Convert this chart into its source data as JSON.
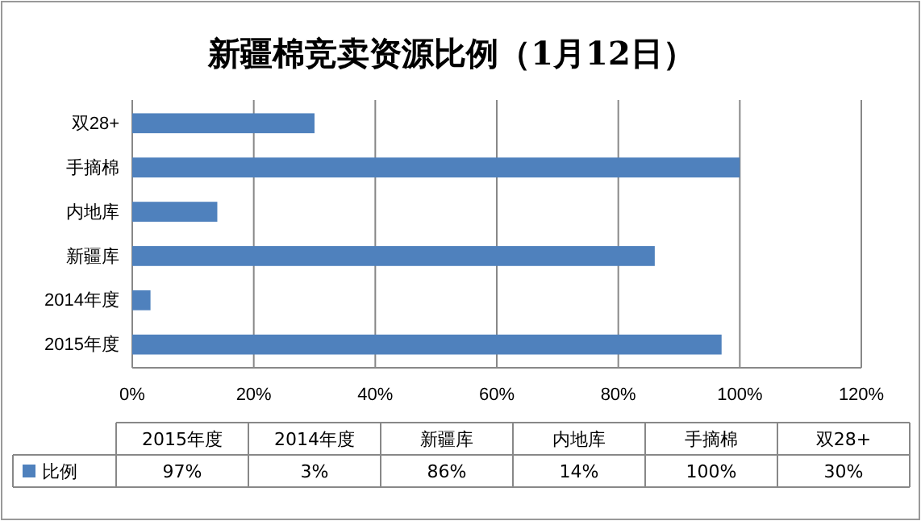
{
  "chart_data": {
    "type": "bar",
    "orientation": "horizontal",
    "title": "新疆棉竞卖资源比例（1月12日）",
    "categories": [
      "双28+",
      "手摘棉",
      "内地库",
      "新疆库",
      "2014年度",
      "2015年度"
    ],
    "series": [
      {
        "name": "比例",
        "color": "#4f81bd",
        "values": [
          30,
          100,
          14,
          86,
          3,
          97
        ]
      }
    ],
    "value_labels": [
      "30%",
      "100%",
      "14%",
      "86%",
      "3%",
      "97%"
    ],
    "xlim": [
      0,
      120
    ],
    "xticks": [
      {
        "value": 0,
        "label": "0%"
      },
      {
        "value": 20,
        "label": "20%"
      },
      {
        "value": 40,
        "label": "40%"
      },
      {
        "value": 60,
        "label": "60%"
      },
      {
        "value": 80,
        "label": "80%"
      },
      {
        "value": 100,
        "label": "100%"
      },
      {
        "value": 120,
        "label": "120%"
      }
    ],
    "grid": "x",
    "legend": "bottom"
  }
}
